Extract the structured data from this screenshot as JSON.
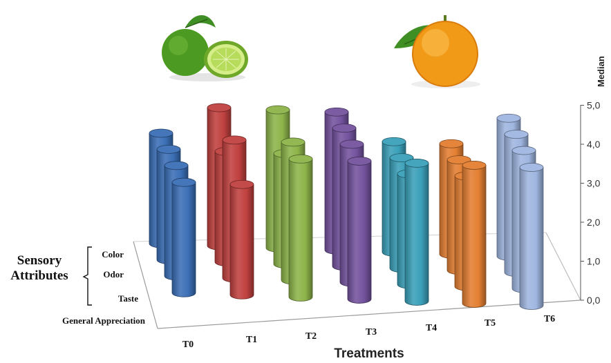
{
  "chart_data": {
    "type": "bar",
    "subtype": "3d-cylinder",
    "title": "",
    "xlabel": "Treatments",
    "ylabel": "Median",
    "zlabel": "Sensory Attributes",
    "categories": [
      "T0",
      "T1",
      "T2",
      "T3",
      "T4",
      "T5",
      "T6"
    ],
    "y_ticks": [
      "0,0",
      "1,0",
      "2,0",
      "3,0",
      "4,0",
      "5,0"
    ],
    "ylim": [
      0,
      5
    ],
    "grid": false,
    "legend": "none",
    "series": [
      {
        "name": "Color",
        "values": [
          4.0,
          5.0,
          5.0,
          5.0,
          4.0,
          4.0,
          5.0
        ]
      },
      {
        "name": "Odor",
        "values": [
          4.0,
          4.0,
          4.0,
          5.0,
          4.0,
          4.0,
          5.0
        ]
      },
      {
        "name": "Taste",
        "values": [
          4.0,
          5.0,
          5.0,
          5.0,
          4.0,
          4.0,
          5.0
        ]
      },
      {
        "name": "General Appreciation",
        "values": [
          4.0,
          4.0,
          5.0,
          5.0,
          5.0,
          5.0,
          5.0
        ]
      }
    ],
    "treatment_colors": [
      "#3b6fb6",
      "#c0413f",
      "#8db44a",
      "#74539e",
      "#3aa0b9",
      "#e47f32",
      "#9fb6e0"
    ],
    "decorations": [
      "lime-icon",
      "orange-icon"
    ]
  }
}
